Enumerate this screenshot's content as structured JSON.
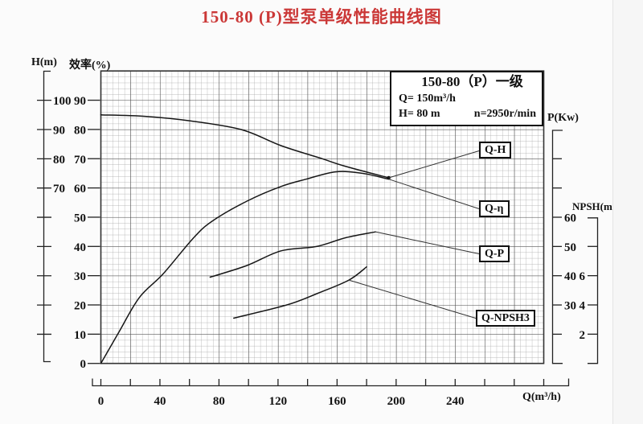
{
  "page_title": "150-80 (P)型泵单级性能曲线图",
  "info_box": {
    "model": "150-80（P）一级",
    "flow": "Q= 150m³/h",
    "head": "H= 80 m",
    "speed": "n=2950r/min"
  },
  "curve_labels": {
    "qh": "Q-H",
    "qeta": "Q-η",
    "qp": "Q-P",
    "qnpsh": "Q-NPSH3"
  },
  "chart_data": {
    "type": "line",
    "title": "150-80 (P)型泵单级性能曲线图",
    "grid": "dense minor grid with major lines every 5 divisions",
    "x_axis": {
      "label": "Q(m³/h)",
      "range": [
        0,
        300
      ],
      "minor_step": 20,
      "labeled_ticks": [
        0,
        40,
        80,
        120,
        160,
        200,
        240
      ]
    },
    "y_axes": [
      {
        "id": "H",
        "label": "H(m)",
        "tick_values": [
          100,
          90,
          80,
          70,
          60,
          50,
          40,
          30,
          20
        ],
        "labeled_ticks": [
          100,
          90,
          80,
          70
        ]
      },
      {
        "id": "eff",
        "label": "效率(%)",
        "tick_values": [
          90,
          80,
          70,
          60,
          50,
          40,
          30,
          20,
          10,
          0
        ],
        "labeled_ticks": [
          90,
          80,
          70,
          60,
          50,
          40,
          30,
          20,
          10,
          0
        ]
      },
      {
        "id": "P",
        "label": "P(Kw)",
        "tick_values": [
          80,
          70,
          60,
          50,
          40,
          30,
          20
        ],
        "labeled_ticks": [
          60,
          50,
          40,
          30
        ]
      },
      {
        "id": "NPSH",
        "label": "NPSH(m)",
        "tick_values": [
          8,
          6,
          4,
          2
        ],
        "labeled_ticks": [
          6,
          4,
          2
        ]
      }
    ],
    "series": [
      {
        "name": "Q-H",
        "y_axis": "H",
        "points": [
          [
            0,
            95
          ],
          [
            30,
            94.5
          ],
          [
            60,
            93
          ],
          [
            95,
            90
          ],
          [
            122,
            84.5
          ],
          [
            150,
            80
          ],
          [
            165,
            77.5
          ],
          [
            195,
            73.5
          ]
        ]
      },
      {
        "name": "Q-η",
        "y_axis": "eff",
        "points": [
          [
            0,
            0
          ],
          [
            12,
            10.5
          ],
          [
            26,
            22.5
          ],
          [
            42,
            30.5
          ],
          [
            62,
            42.5
          ],
          [
            75,
            48.5
          ],
          [
            99,
            55.5
          ],
          [
            122,
            60.5
          ],
          [
            139,
            63
          ],
          [
            159,
            65.5
          ],
          [
            177,
            65
          ],
          [
            195,
            63
          ]
        ]
      },
      {
        "name": "Q-P",
        "y_axis": "P",
        "points": [
          [
            74,
            39.5
          ],
          [
            99,
            43.5
          ],
          [
            122,
            48.5
          ],
          [
            146,
            50
          ],
          [
            166,
            53
          ],
          [
            186,
            55
          ]
        ]
      },
      {
        "name": "Q-NPSH3",
        "y_axis": "NPSH",
        "points": [
          [
            90,
            3.1
          ],
          [
            126,
            4.0
          ],
          [
            147,
            4.8
          ],
          [
            168,
            5.7
          ],
          [
            180,
            6.6
          ]
        ]
      }
    ],
    "rated_point": {
      "Q": "150m³/h",
      "H": "80 m",
      "n": "2950r/min"
    }
  }
}
